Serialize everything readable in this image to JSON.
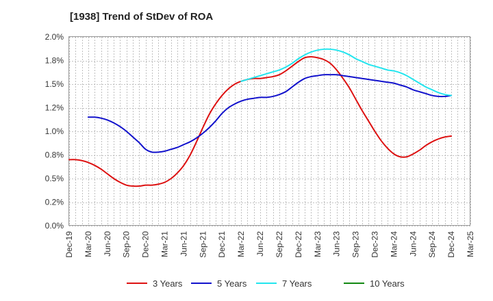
{
  "chart_data": {
    "type": "line",
    "title": "[1938]  Trend of StDev of ROA",
    "xlabel": "",
    "ylabel": "",
    "x_ticks": [
      "Dec-19",
      "Mar-20",
      "Jun-20",
      "Sep-20",
      "Dec-20",
      "Mar-21",
      "Jun-21",
      "Sep-21",
      "Dec-21",
      "Mar-22",
      "Jun-22",
      "Sep-22",
      "Dec-22",
      "Mar-23",
      "Jun-23",
      "Sep-23",
      "Dec-23",
      "Mar-24",
      "Jun-24",
      "Sep-24",
      "Dec-24",
      "Mar-25"
    ],
    "y_ticks": [
      "0.0%",
      "0.2%",
      "0.5%",
      "0.8%",
      "1.0%",
      "1.2%",
      "1.5%",
      "1.8%",
      "2.0%"
    ],
    "ylim": [
      0,
      2.0
    ],
    "y_unit": "%",
    "grid": true,
    "legend_position": "bottom",
    "series": [
      {
        "name": "3 Years",
        "color": "#dd1111",
        "points": [
          [
            "Dec-19",
            0.7
          ],
          [
            "Jan-20",
            0.7
          ],
          [
            "Feb-20",
            0.69
          ],
          [
            "Mar-20",
            0.67
          ],
          [
            "Apr-20",
            0.64
          ],
          [
            "May-20",
            0.6
          ],
          [
            "Jun-20",
            0.55
          ],
          [
            "Jul-20",
            0.5
          ],
          [
            "Aug-20",
            0.46
          ],
          [
            "Sep-20",
            0.43
          ],
          [
            "Oct-20",
            0.42
          ],
          [
            "Nov-20",
            0.42
          ],
          [
            "Dec-20",
            0.43
          ],
          [
            "Jan-21",
            0.43
          ],
          [
            "Feb-21",
            0.44
          ],
          [
            "Mar-21",
            0.46
          ],
          [
            "Apr-21",
            0.5
          ],
          [
            "May-21",
            0.56
          ],
          [
            "Jun-21",
            0.64
          ],
          [
            "Jul-21",
            0.75
          ],
          [
            "Aug-21",
            0.89
          ],
          [
            "Sep-21",
            1.04
          ],
          [
            "Oct-21",
            1.18
          ],
          [
            "Nov-21",
            1.29
          ],
          [
            "Dec-21",
            1.38
          ],
          [
            "Jan-22",
            1.45
          ],
          [
            "Feb-22",
            1.5
          ],
          [
            "Mar-22",
            1.53
          ],
          [
            "Apr-22",
            1.55
          ],
          [
            "May-22",
            1.56
          ],
          [
            "Jun-22",
            1.56
          ],
          [
            "Jul-22",
            1.57
          ],
          [
            "Aug-22",
            1.58
          ],
          [
            "Sep-22",
            1.6
          ],
          [
            "Oct-22",
            1.64
          ],
          [
            "Nov-22",
            1.69
          ],
          [
            "Dec-22",
            1.74
          ],
          [
            "Jan-23",
            1.78
          ],
          [
            "Feb-23",
            1.79
          ],
          [
            "Mar-23",
            1.78
          ],
          [
            "Apr-23",
            1.76
          ],
          [
            "May-23",
            1.72
          ],
          [
            "Jun-23",
            1.65
          ],
          [
            "Jul-23",
            1.56
          ],
          [
            "Aug-23",
            1.46
          ],
          [
            "Sep-23",
            1.34
          ],
          [
            "Oct-23",
            1.22
          ],
          [
            "Nov-23",
            1.11
          ],
          [
            "Dec-23",
            1.0
          ],
          [
            "Jan-24",
            0.9
          ],
          [
            "Feb-24",
            0.82
          ],
          [
            "Mar-24",
            0.76
          ],
          [
            "Apr-24",
            0.73
          ],
          [
            "May-24",
            0.73
          ],
          [
            "Jun-24",
            0.76
          ],
          [
            "Jul-24",
            0.8
          ],
          [
            "Aug-24",
            0.85
          ],
          [
            "Sep-24",
            0.89
          ],
          [
            "Oct-24",
            0.92
          ],
          [
            "Nov-24",
            0.94
          ],
          [
            "Dec-24",
            0.95
          ]
        ]
      },
      {
        "name": "5 Years",
        "color": "#1111cc",
        "points": [
          [
            "Mar-20",
            1.15
          ],
          [
            "Apr-20",
            1.15
          ],
          [
            "May-20",
            1.14
          ],
          [
            "Jun-20",
            1.12
          ],
          [
            "Jul-20",
            1.09
          ],
          [
            "Aug-20",
            1.05
          ],
          [
            "Sep-20",
            1.0
          ],
          [
            "Oct-20",
            0.94
          ],
          [
            "Nov-20",
            0.88
          ],
          [
            "Dec-20",
            0.81
          ],
          [
            "Jan-21",
            0.78
          ],
          [
            "Feb-21",
            0.78
          ],
          [
            "Mar-21",
            0.79
          ],
          [
            "Apr-21",
            0.81
          ],
          [
            "May-21",
            0.83
          ],
          [
            "Jun-21",
            0.86
          ],
          [
            "Jul-21",
            0.89
          ],
          [
            "Aug-21",
            0.93
          ],
          [
            "Sep-21",
            0.98
          ],
          [
            "Oct-21",
            1.04
          ],
          [
            "Nov-21",
            1.11
          ],
          [
            "Dec-21",
            1.19
          ],
          [
            "Jan-22",
            1.25
          ],
          [
            "Feb-22",
            1.29
          ],
          [
            "Mar-22",
            1.32
          ],
          [
            "Apr-22",
            1.34
          ],
          [
            "May-22",
            1.35
          ],
          [
            "Jun-22",
            1.36
          ],
          [
            "Jul-22",
            1.36
          ],
          [
            "Aug-22",
            1.37
          ],
          [
            "Sep-22",
            1.39
          ],
          [
            "Oct-22",
            1.42
          ],
          [
            "Nov-22",
            1.47
          ],
          [
            "Dec-22",
            1.52
          ],
          [
            "Jan-23",
            1.56
          ],
          [
            "Feb-23",
            1.58
          ],
          [
            "Mar-23",
            1.59
          ],
          [
            "Apr-23",
            1.6
          ],
          [
            "May-23",
            1.6
          ],
          [
            "Jun-23",
            1.6
          ],
          [
            "Jul-23",
            1.59
          ],
          [
            "Aug-23",
            1.58
          ],
          [
            "Sep-23",
            1.57
          ],
          [
            "Oct-23",
            1.56
          ],
          [
            "Nov-23",
            1.55
          ],
          [
            "Dec-23",
            1.54
          ],
          [
            "Jan-24",
            1.53
          ],
          [
            "Feb-24",
            1.52
          ],
          [
            "Mar-24",
            1.51
          ],
          [
            "Apr-24",
            1.49
          ],
          [
            "May-24",
            1.47
          ],
          [
            "Jun-24",
            1.44
          ],
          [
            "Jul-24",
            1.42
          ],
          [
            "Aug-24",
            1.4
          ],
          [
            "Sep-24",
            1.38
          ],
          [
            "Oct-24",
            1.37
          ],
          [
            "Nov-24",
            1.37
          ],
          [
            "Dec-24",
            1.38
          ]
        ]
      },
      {
        "name": "7 Years",
        "color": "#22e5ee",
        "points": [
          [
            "Mar-22",
            1.53
          ],
          [
            "Apr-22",
            1.55
          ],
          [
            "May-22",
            1.57
          ],
          [
            "Jun-22",
            1.59
          ],
          [
            "Jul-22",
            1.61
          ],
          [
            "Aug-22",
            1.63
          ],
          [
            "Sep-22",
            1.65
          ],
          [
            "Oct-22",
            1.68
          ],
          [
            "Nov-22",
            1.72
          ],
          [
            "Dec-22",
            1.77
          ],
          [
            "Jan-23",
            1.81
          ],
          [
            "Feb-23",
            1.84
          ],
          [
            "Mar-23",
            1.86
          ],
          [
            "Apr-23",
            1.87
          ],
          [
            "May-23",
            1.87
          ],
          [
            "Jun-23",
            1.86
          ],
          [
            "Jul-23",
            1.84
          ],
          [
            "Aug-23",
            1.81
          ],
          [
            "Sep-23",
            1.77
          ],
          [
            "Oct-23",
            1.74
          ],
          [
            "Nov-23",
            1.71
          ],
          [
            "Dec-23",
            1.69
          ],
          [
            "Jan-24",
            1.67
          ],
          [
            "Feb-24",
            1.65
          ],
          [
            "Mar-24",
            1.64
          ],
          [
            "Apr-24",
            1.62
          ],
          [
            "May-24",
            1.59
          ],
          [
            "Jun-24",
            1.55
          ],
          [
            "Jul-24",
            1.51
          ],
          [
            "Aug-24",
            1.47
          ],
          [
            "Sep-24",
            1.44
          ],
          [
            "Oct-24",
            1.41
          ],
          [
            "Nov-24",
            1.39
          ],
          [
            "Dec-24",
            1.38
          ]
        ]
      },
      {
        "name": "10 Years",
        "color": "#118811",
        "points": []
      }
    ]
  }
}
